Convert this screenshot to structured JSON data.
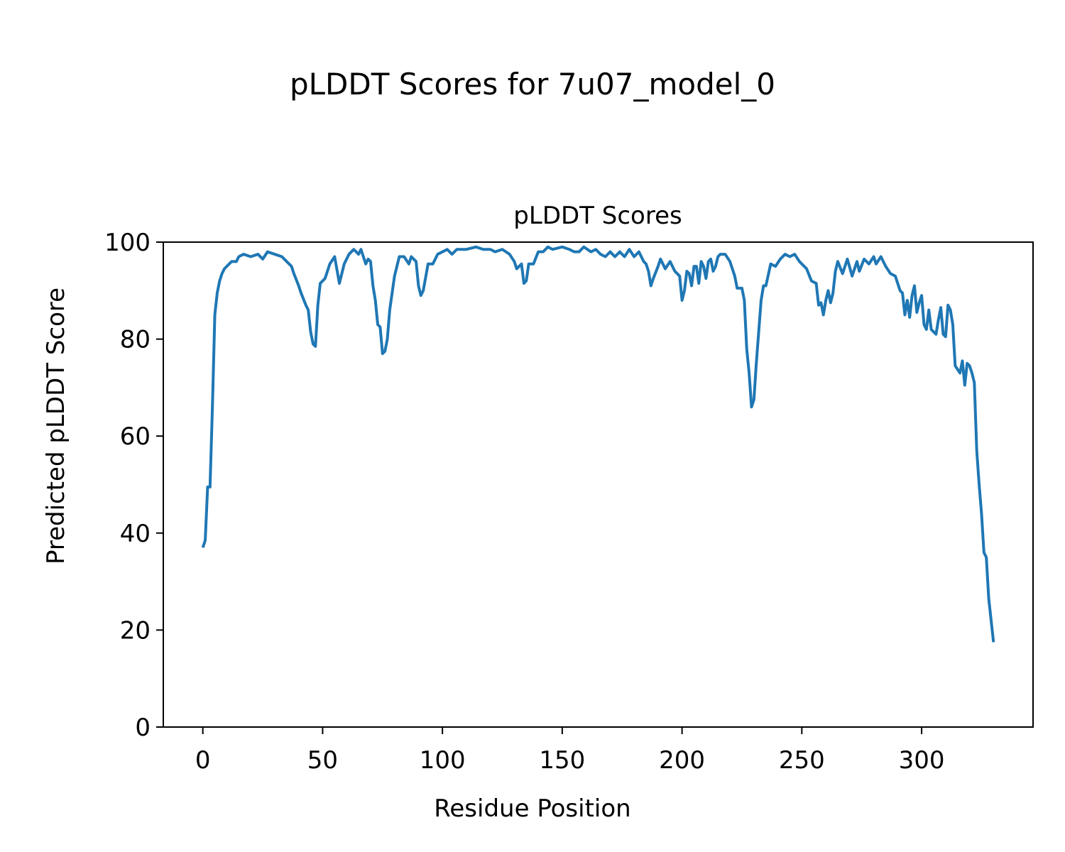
{
  "chart_data": {
    "type": "line",
    "suptitle": "pLDDT Scores for 7u07_model_0",
    "title": "pLDDT Scores",
    "xlabel": "Residue Position",
    "ylabel": "Predicted pLDDT Score",
    "xlim": [
      -16.5,
      346.5
    ],
    "xticks": [
      0,
      50,
      100,
      150,
      200,
      250,
      300
    ],
    "ylim": [
      0,
      100
    ],
    "yticks": [
      0,
      20,
      40,
      60,
      80,
      100
    ],
    "grid": false,
    "series": [
      {
        "name": "pLDDT",
        "color": "#1f77b4",
        "x": [
          0,
          1,
          2,
          3,
          4,
          5,
          6,
          7,
          8,
          9,
          10,
          12,
          14,
          15,
          17,
          20,
          23,
          25,
          27,
          30,
          33,
          35,
          37,
          38,
          40,
          41,
          43,
          44,
          45,
          46,
          47,
          48,
          49,
          51,
          53,
          55,
          57,
          59,
          61,
          63,
          65,
          66,
          68,
          69,
          70,
          71,
          72,
          73,
          74,
          75,
          76,
          77,
          78,
          80,
          82,
          84,
          86,
          87,
          89,
          90,
          91,
          92,
          94,
          96,
          98,
          100,
          102,
          104,
          106,
          110,
          114,
          117,
          120,
          122,
          125,
          128,
          130,
          131,
          133,
          134,
          135,
          136,
          138,
          140,
          142,
          144,
          146,
          150,
          153,
          155,
          157,
          159,
          162,
          164,
          166,
          168,
          170,
          172,
          174,
          176,
          178,
          180,
          182,
          184,
          185,
          186,
          187,
          188,
          190,
          191,
          193,
          195,
          197,
          199,
          200,
          201,
          202,
          203,
          204,
          205,
          206,
          207,
          208,
          209,
          210,
          211,
          212,
          213,
          214,
          215,
          216,
          218,
          220,
          222,
          223,
          225,
          226,
          227,
          228,
          229,
          230,
          231,
          233,
          234,
          235,
          237,
          239,
          241,
          243,
          245,
          247,
          249,
          250,
          252,
          254,
          256,
          257,
          258,
          259,
          260,
          261,
          262,
          263,
          264,
          265,
          267,
          269,
          271,
          273,
          274,
          276,
          278,
          280,
          281,
          283,
          285,
          287,
          289,
          291,
          292,
          293,
          294,
          295,
          296,
          297,
          298,
          299,
          300,
          301,
          302,
          303,
          304,
          305,
          306,
          307,
          308,
          309,
          310,
          311,
          312,
          313,
          314,
          316,
          317,
          318,
          319,
          320,
          321,
          322,
          323,
          324,
          325,
          326,
          327,
          328,
          329,
          330
        ],
        "values": [
          37,
          38.5,
          49.5,
          49.5,
          66,
          85,
          89.5,
          92,
          93.5,
          94.5,
          95,
          96,
          96,
          97,
          97.5,
          97,
          97.5,
          96.5,
          98,
          97.5,
          97,
          96,
          95,
          93.5,
          91,
          89.5,
          87,
          86,
          81.5,
          79,
          78.5,
          87,
          91.5,
          92.5,
          95.5,
          97,
          91.5,
          95.5,
          97.5,
          98.5,
          97.5,
          98.5,
          95.5,
          96.5,
          96,
          91,
          88,
          83,
          82.5,
          77,
          77.5,
          80,
          86,
          93,
          97,
          97,
          95.5,
          97,
          96,
          91,
          89,
          90,
          95.5,
          95.5,
          97.5,
          98,
          98.5,
          97.5,
          98.5,
          98.5,
          99,
          98.5,
          98.5,
          98,
          98.5,
          97.5,
          96,
          94.5,
          95.5,
          91.5,
          92,
          95.5,
          95.5,
          98,
          98,
          99,
          98.5,
          99,
          98.5,
          98,
          98,
          99,
          98,
          98.5,
          97.5,
          97,
          98,
          97,
          98,
          97,
          98.5,
          97,
          98,
          96,
          95.5,
          94,
          91,
          92.5,
          95,
          96.5,
          94.5,
          96,
          94,
          93,
          88,
          90,
          94,
          93.5,
          91,
          95,
          95,
          91.5,
          96,
          95,
          92.5,
          96,
          96.5,
          94,
          95,
          97,
          97.5,
          97.5,
          96,
          93,
          90.5,
          90.5,
          88,
          78,
          73,
          66,
          67.5,
          75,
          88,
          91,
          91,
          95.5,
          95,
          96.5,
          97.5,
          97,
          97.5,
          96,
          95.5,
          94.5,
          92,
          91.5,
          87,
          87.5,
          85,
          88,
          90,
          87.5,
          89.5,
          94,
          96,
          93.5,
          96.5,
          93,
          96,
          94,
          96.5,
          95.5,
          97,
          95.5,
          97,
          95,
          93.5,
          93,
          90,
          89.5,
          85,
          88,
          84.5,
          89,
          91,
          85.5,
          87.5,
          89,
          83,
          82,
          86,
          82,
          81.5,
          81,
          84,
          86.5,
          81,
          80.5,
          87,
          86,
          83,
          74.5,
          73,
          75.5,
          70.5,
          75,
          74.5,
          73,
          71,
          57,
          50,
          44,
          36,
          35,
          26.5,
          22,
          17.5
        ]
      }
    ]
  }
}
